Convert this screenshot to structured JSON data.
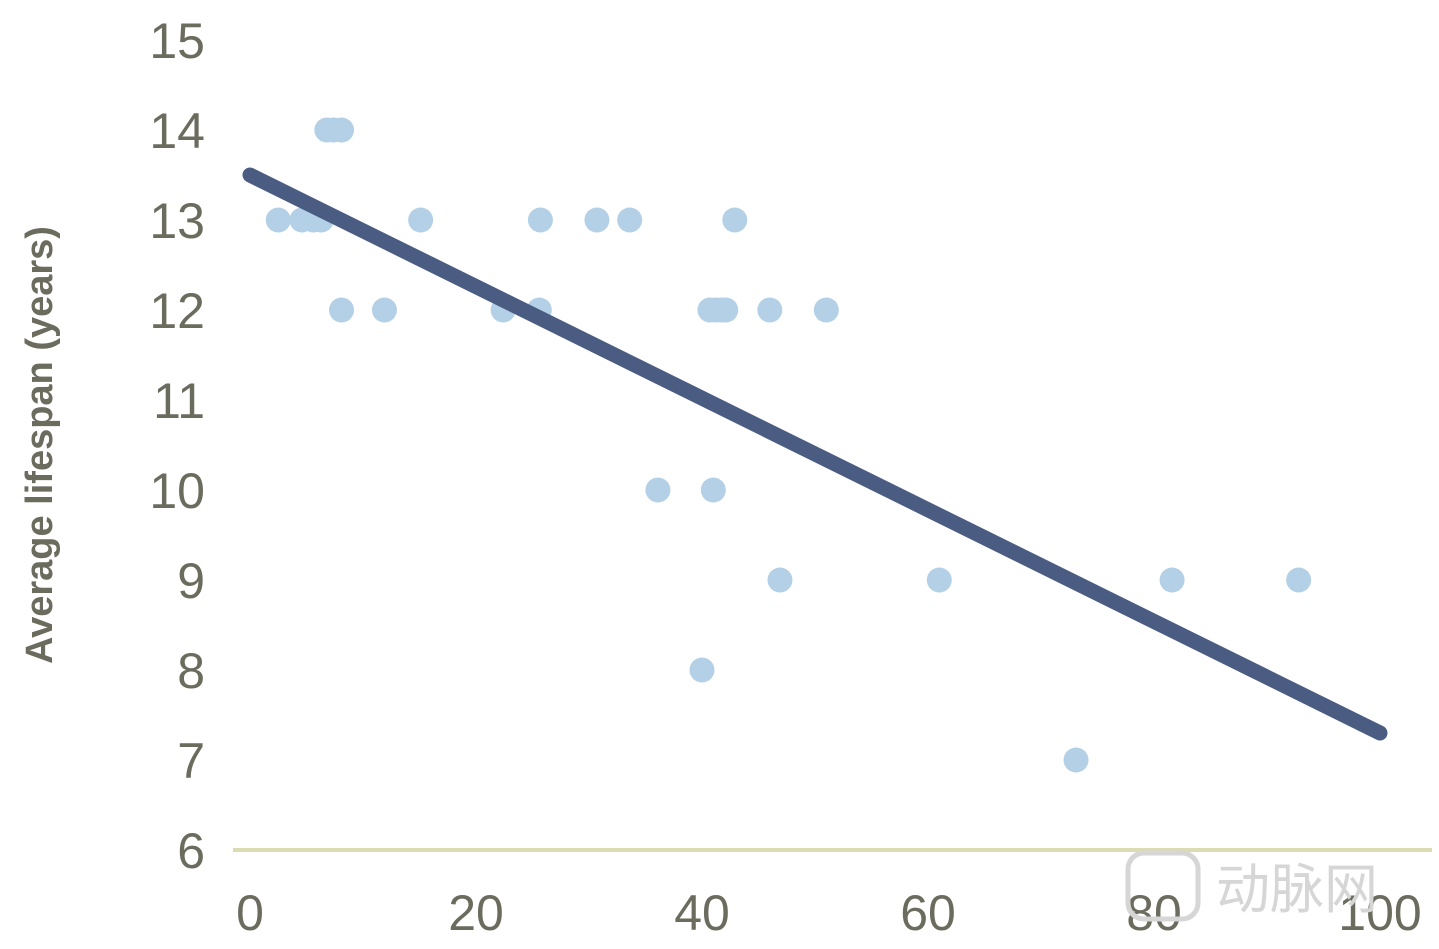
{
  "chart_data": {
    "type": "scatter",
    "title": "",
    "xlabel": "",
    "ylabel": "Average lifespan (years)",
    "xlim": [
      0,
      100
    ],
    "ylim": [
      6,
      15
    ],
    "x_ticks": [
      0,
      20,
      40,
      60,
      80,
      100
    ],
    "y_ticks": [
      6,
      7,
      8,
      9,
      10,
      11,
      12,
      13,
      14,
      15
    ],
    "grid": false,
    "legend": "none",
    "colors": {
      "points": "#b3d0e6",
      "trend": "#4b5c82",
      "axis": "#dcdcb4",
      "text": "#6b6b5e"
    },
    "points": [
      {
        "x": 2.5,
        "y": 13
      },
      {
        "x": 4.6,
        "y": 13
      },
      {
        "x": 5.6,
        "y": 13
      },
      {
        "x": 6.3,
        "y": 13
      },
      {
        "x": 6.8,
        "y": 14
      },
      {
        "x": 7.4,
        "y": 14
      },
      {
        "x": 8.1,
        "y": 14
      },
      {
        "x": 8.1,
        "y": 12
      },
      {
        "x": 11.9,
        "y": 12
      },
      {
        "x": 15.1,
        "y": 13
      },
      {
        "x": 22.4,
        "y": 12
      },
      {
        "x": 25.6,
        "y": 12
      },
      {
        "x": 25.7,
        "y": 13
      },
      {
        "x": 30.7,
        "y": 13
      },
      {
        "x": 33.6,
        "y": 13
      },
      {
        "x": 36.1,
        "y": 10
      },
      {
        "x": 40.0,
        "y": 8
      },
      {
        "x": 40.7,
        "y": 12
      },
      {
        "x": 41.0,
        "y": 10
      },
      {
        "x": 41.2,
        "y": 12
      },
      {
        "x": 41.7,
        "y": 12
      },
      {
        "x": 42.1,
        "y": 12
      },
      {
        "x": 42.9,
        "y": 13
      },
      {
        "x": 46.0,
        "y": 12
      },
      {
        "x": 46.9,
        "y": 9
      },
      {
        "x": 51.0,
        "y": 12
      },
      {
        "x": 61.0,
        "y": 9
      },
      {
        "x": 73.1,
        "y": 7
      },
      {
        "x": 81.6,
        "y": 9
      },
      {
        "x": 92.8,
        "y": 9
      }
    ],
    "trendline": {
      "x": [
        0,
        100
      ],
      "y": [
        13.5,
        7.3
      ]
    }
  },
  "watermark": {
    "text": "动脉网"
  }
}
